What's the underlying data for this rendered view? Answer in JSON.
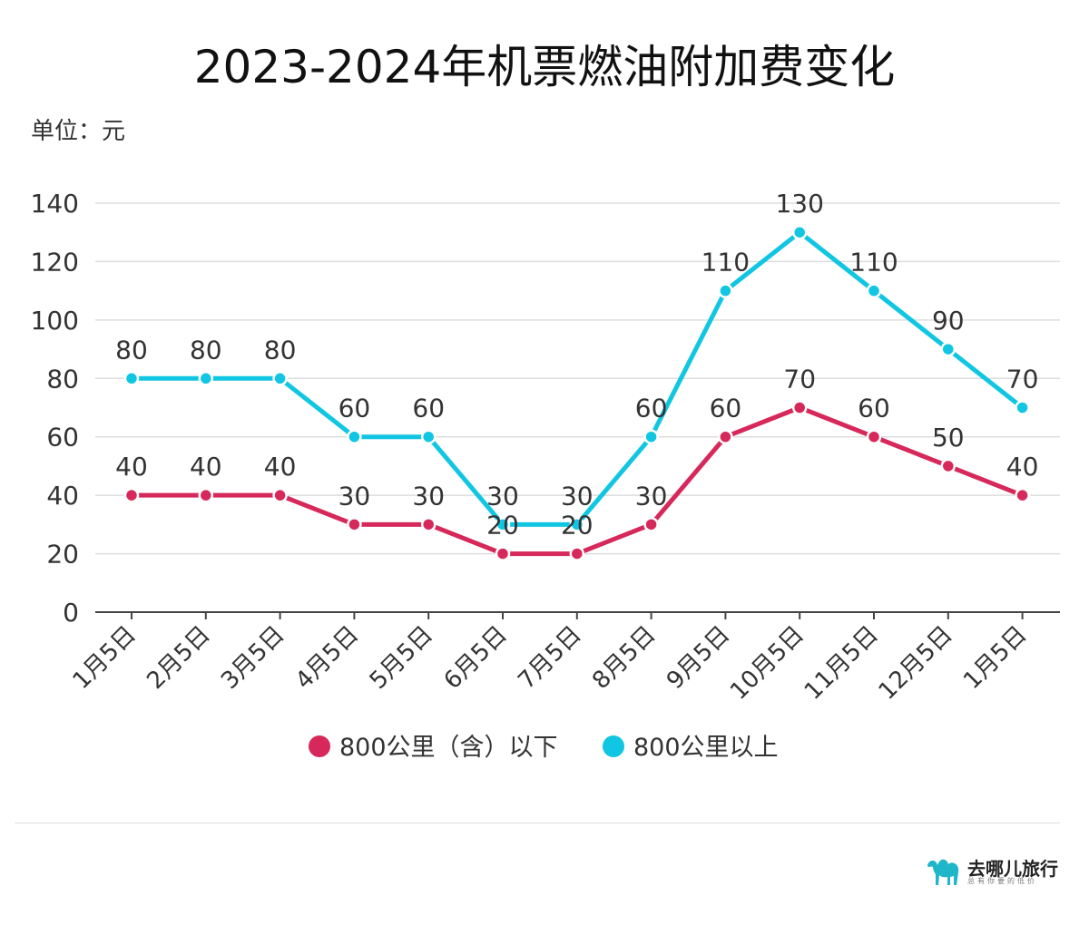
{
  "header": {
    "title": "2023-2024年机票燃油附加费变化",
    "unit_label": "单位：元"
  },
  "chart_data": {
    "type": "line",
    "title": "2023-2024年机票燃油附加费变化",
    "ylabel": "",
    "xlabel": "",
    "categories": [
      "1月5日",
      "2月5日",
      "3月5日",
      "4月5日",
      "5月5日",
      "6月5日",
      "7月5日",
      "8月5日",
      "9月5日",
      "10月5日",
      "11月5日",
      "12月5日",
      "1月5日"
    ],
    "ylim": [
      0,
      140
    ],
    "yticks": [
      0,
      20,
      40,
      60,
      80,
      100,
      120,
      140
    ],
    "grid": true,
    "legend_position": "bottom",
    "series": [
      {
        "name": "800公里（含）以下",
        "color": "#d6285a",
        "values": [
          40,
          40,
          40,
          30,
          30,
          20,
          20,
          30,
          60,
          70,
          60,
          50,
          40
        ]
      },
      {
        "name": "800公里以上",
        "color": "#11c6e2",
        "values": [
          80,
          80,
          80,
          60,
          60,
          30,
          30,
          60,
          110,
          130,
          110,
          90,
          70
        ]
      }
    ]
  },
  "footer": {
    "brand_name": "去哪儿旅行",
    "brand_slogan": "总有你要的低价",
    "brand_color": "#1fb6c9",
    "brand_icon": "camel-icon"
  }
}
